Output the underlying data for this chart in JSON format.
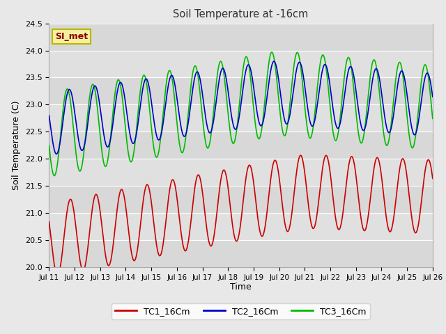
{
  "title": "Soil Temperature at -16cm",
  "xlabel": "Time",
  "ylabel": "Soil Temperature (C)",
  "ylim": [
    20.0,
    24.5
  ],
  "xlim": [
    0,
    360
  ],
  "annotation": "SI_met",
  "series": {
    "TC1_16Cm": {
      "color": "#cc0000",
      "linewidth": 1.2
    },
    "TC2_16Cm": {
      "color": "#0000cc",
      "linewidth": 1.2
    },
    "TC3_16Cm": {
      "color": "#00bb00",
      "linewidth": 1.2
    }
  },
  "xtick_labels": [
    "Jul 11",
    "Jul 12",
    "Jul 13",
    "Jul 14",
    "Jul 15",
    "Jul 16",
    "Jul 17",
    "Jul 18",
    "Jul 19",
    "Jul 20",
    "Jul 21",
    "Jul 22",
    "Jul 23",
    "Jul 24",
    "Jul 25",
    "Jul 26"
  ],
  "xtick_positions": [
    0,
    24,
    48,
    72,
    96,
    120,
    144,
    168,
    192,
    216,
    240,
    264,
    288,
    312,
    336,
    360
  ],
  "ytick_vals": [
    20.0,
    20.5,
    21.0,
    21.5,
    22.0,
    22.5,
    23.0,
    23.5,
    24.0,
    24.5
  ]
}
